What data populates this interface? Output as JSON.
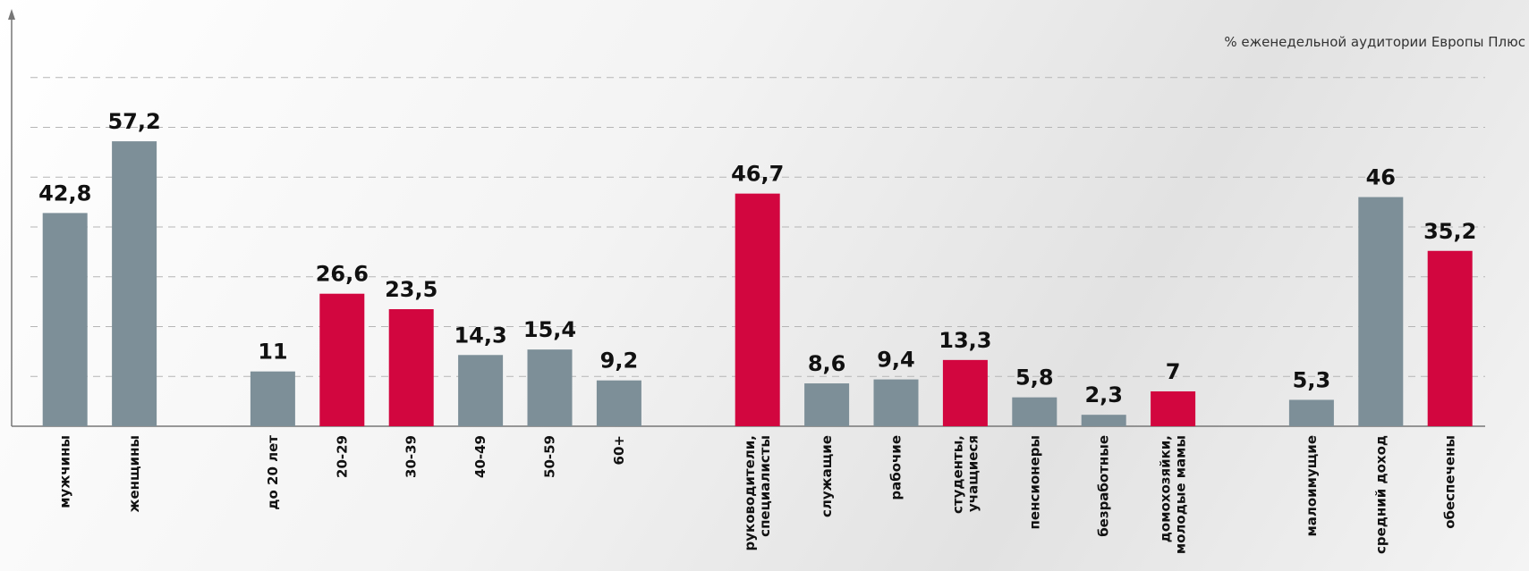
{
  "chart_data": {
    "type": "bar",
    "note": "% еженедельной аудитории Европы Плюс",
    "categories": [
      "мужчины",
      "женщины",
      null,
      "до 20 лет",
      "20-29",
      "30-39",
      "40-49",
      "50-59",
      "60+",
      null,
      "руководители,\nспециалисты",
      "служащие",
      "рабочие",
      "студенты,\nучащиеся",
      "пенсионеры",
      "безработные",
      "домохозяйки,\nмолодые мамы",
      null,
      "малоимущие",
      "средний доход",
      "обеспечены"
    ],
    "values": [
      42.8,
      57.2,
      null,
      11,
      26.6,
      23.5,
      14.3,
      15.4,
      9.2,
      null,
      46.7,
      8.6,
      9.4,
      13.3,
      5.8,
      2.3,
      7,
      null,
      5.3,
      46,
      35.2
    ],
    "value_labels": [
      "42,8",
      "57,2",
      null,
      "11",
      "26,6",
      "23,5",
      "14,3",
      "15,4",
      "9,2",
      null,
      "46,7",
      "8,6",
      "9,4",
      "13,3",
      "5,8",
      "2,3",
      "7",
      null,
      "5,3",
      "46",
      "35,2"
    ],
    "colors": [
      "#7d8f98",
      "#7d8f98",
      null,
      "#7d8f98",
      "#d2063f",
      "#d2063f",
      "#7d8f98",
      "#7d8f98",
      "#7d8f98",
      null,
      "#d2063f",
      "#7d8f98",
      "#7d8f98",
      "#d2063f",
      "#7d8f98",
      "#7d8f98",
      "#d2063f",
      null,
      "#7d8f98",
      "#7d8f98",
      "#d2063f"
    ],
    "ylim": [
      0,
      80
    ],
    "yticks": [
      10,
      20,
      30,
      40,
      50,
      60,
      70
    ],
    "grid": true
  }
}
